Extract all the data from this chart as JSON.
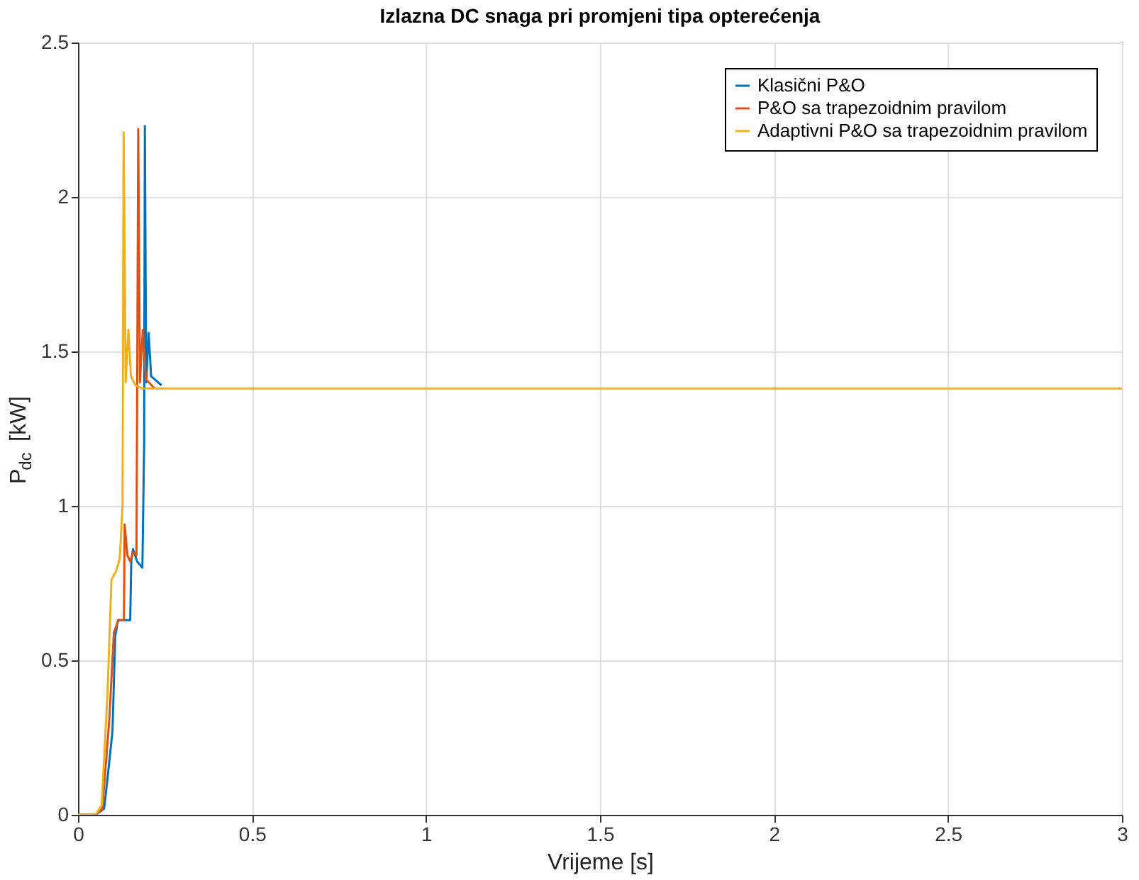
{
  "chart_data": {
    "type": "line",
    "title": "Izlazna DC snaga pri promjeni tipa opterećenja",
    "xlabel": "Vrijeme [s]",
    "ylabel": "P$_{dc}$ [kW]",
    "xlim": [
      0,
      3
    ],
    "ylim": [
      0,
      2.5
    ],
    "xticks": [
      0,
      0.5,
      1,
      1.5,
      2,
      2.5,
      3
    ],
    "yticks": [
      0,
      0.5,
      1,
      1.5,
      2,
      2.5
    ],
    "grid": true,
    "legend": "top right",
    "marker": "none",
    "line_style": "solid",
    "series": [
      {
        "name": "Klasični P&O",
        "color": "#0072bd",
        "x": [
          0,
          0.05,
          0.075,
          0.085,
          0.099,
          0.107,
          0.115,
          0.13,
          0.15,
          0.153,
          0.158,
          0.17,
          0.185,
          0.19,
          0.192,
          0.196,
          0.203,
          0.21,
          0.24
        ],
        "values": [
          0,
          0,
          0.02,
          0.12,
          0.27,
          0.58,
          0.63,
          0.63,
          0.63,
          0.82,
          0.86,
          0.82,
          0.8,
          1.2,
          2.23,
          1.4,
          1.56,
          1.42,
          1.39
        ]
      },
      {
        "name": "P&O sa trapezoidnim pravilom",
        "color": "#d95319",
        "x": [
          0,
          0.05,
          0.07,
          0.09,
          0.103,
          0.116,
          0.132,
          0.134,
          0.142,
          0.15,
          0.158,
          0.168,
          0.173,
          0.178,
          0.186,
          0.195,
          0.22
        ],
        "values": [
          0,
          0,
          0.02,
          0.31,
          0.59,
          0.63,
          0.63,
          0.94,
          0.84,
          0.82,
          0.85,
          0.84,
          2.22,
          1.4,
          1.57,
          1.41,
          1.38
        ]
      },
      {
        "name": "Adaptivni P&O sa trapezoidnim pravilom",
        "color": "#edb120",
        "x": [
          0,
          0.05,
          0.068,
          0.085,
          0.096,
          0.11,
          0.12,
          0.128,
          0.131,
          0.137,
          0.145,
          0.152,
          0.165,
          0.185,
          0.5,
          1,
          1.5,
          2,
          2.5,
          3
        ],
        "values": [
          0,
          0,
          0.03,
          0.4,
          0.76,
          0.79,
          0.83,
          1.0,
          2.21,
          1.4,
          1.57,
          1.42,
          1.39,
          1.38,
          1.38,
          1.38,
          1.38,
          1.38,
          1.38,
          1.38
        ]
      }
    ]
  }
}
